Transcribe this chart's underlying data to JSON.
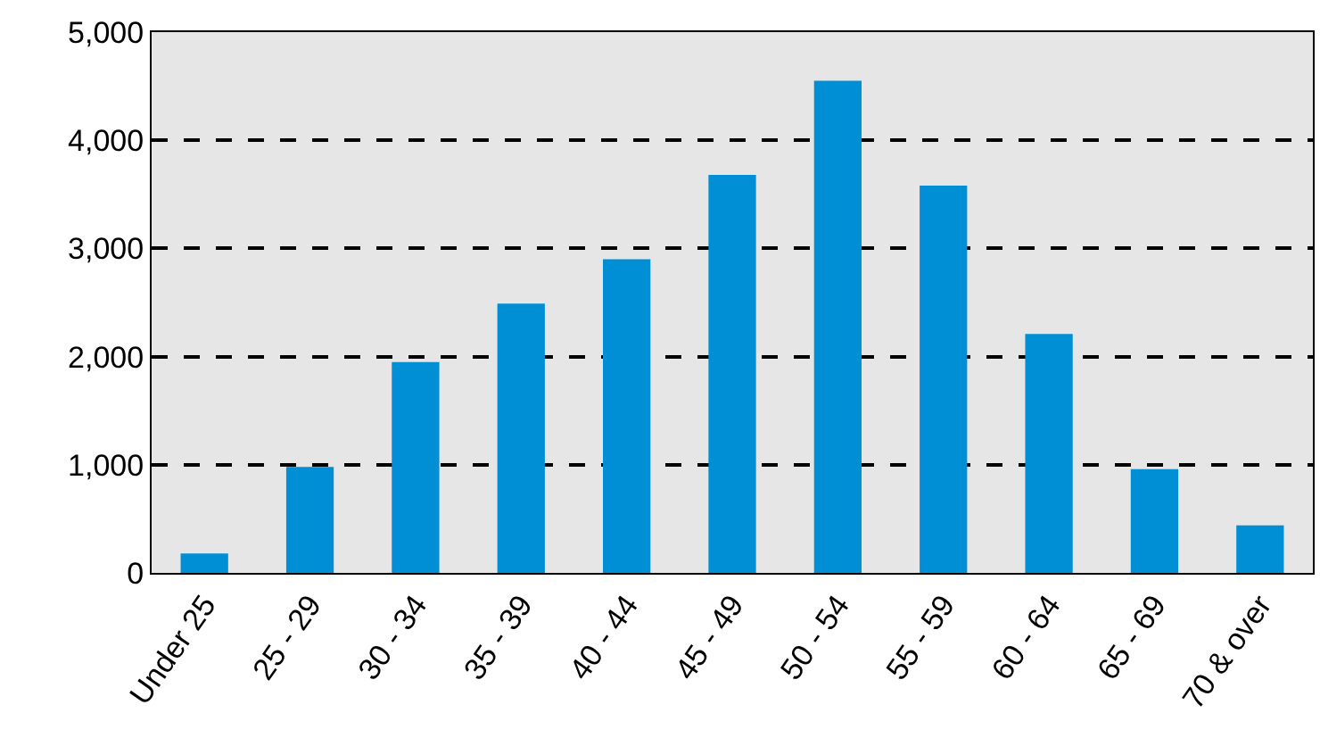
{
  "chart_data": {
    "type": "bar",
    "categories": [
      "Under 25",
      "25 - 29",
      "30 - 34",
      "35 - 39",
      "40 - 44",
      "45 - 49",
      "50 - 54",
      "55 - 59",
      "60 - 64",
      "65 - 69",
      "70 & over"
    ],
    "values": [
      180,
      980,
      1950,
      2490,
      2900,
      3680,
      4550,
      3580,
      2210,
      960,
      440
    ],
    "color": "#008fd5",
    "ylim": [
      0,
      5000
    ],
    "yticks": [
      {
        "value": 0,
        "label": "0"
      },
      {
        "value": 1000,
        "label": "1,000"
      },
      {
        "value": 2000,
        "label": "2,000"
      },
      {
        "value": 3000,
        "label": "3,000"
      },
      {
        "value": 4000,
        "label": "4,000"
      },
      {
        "value": 5000,
        "label": "5,000"
      }
    ],
    "grid": "y"
  }
}
